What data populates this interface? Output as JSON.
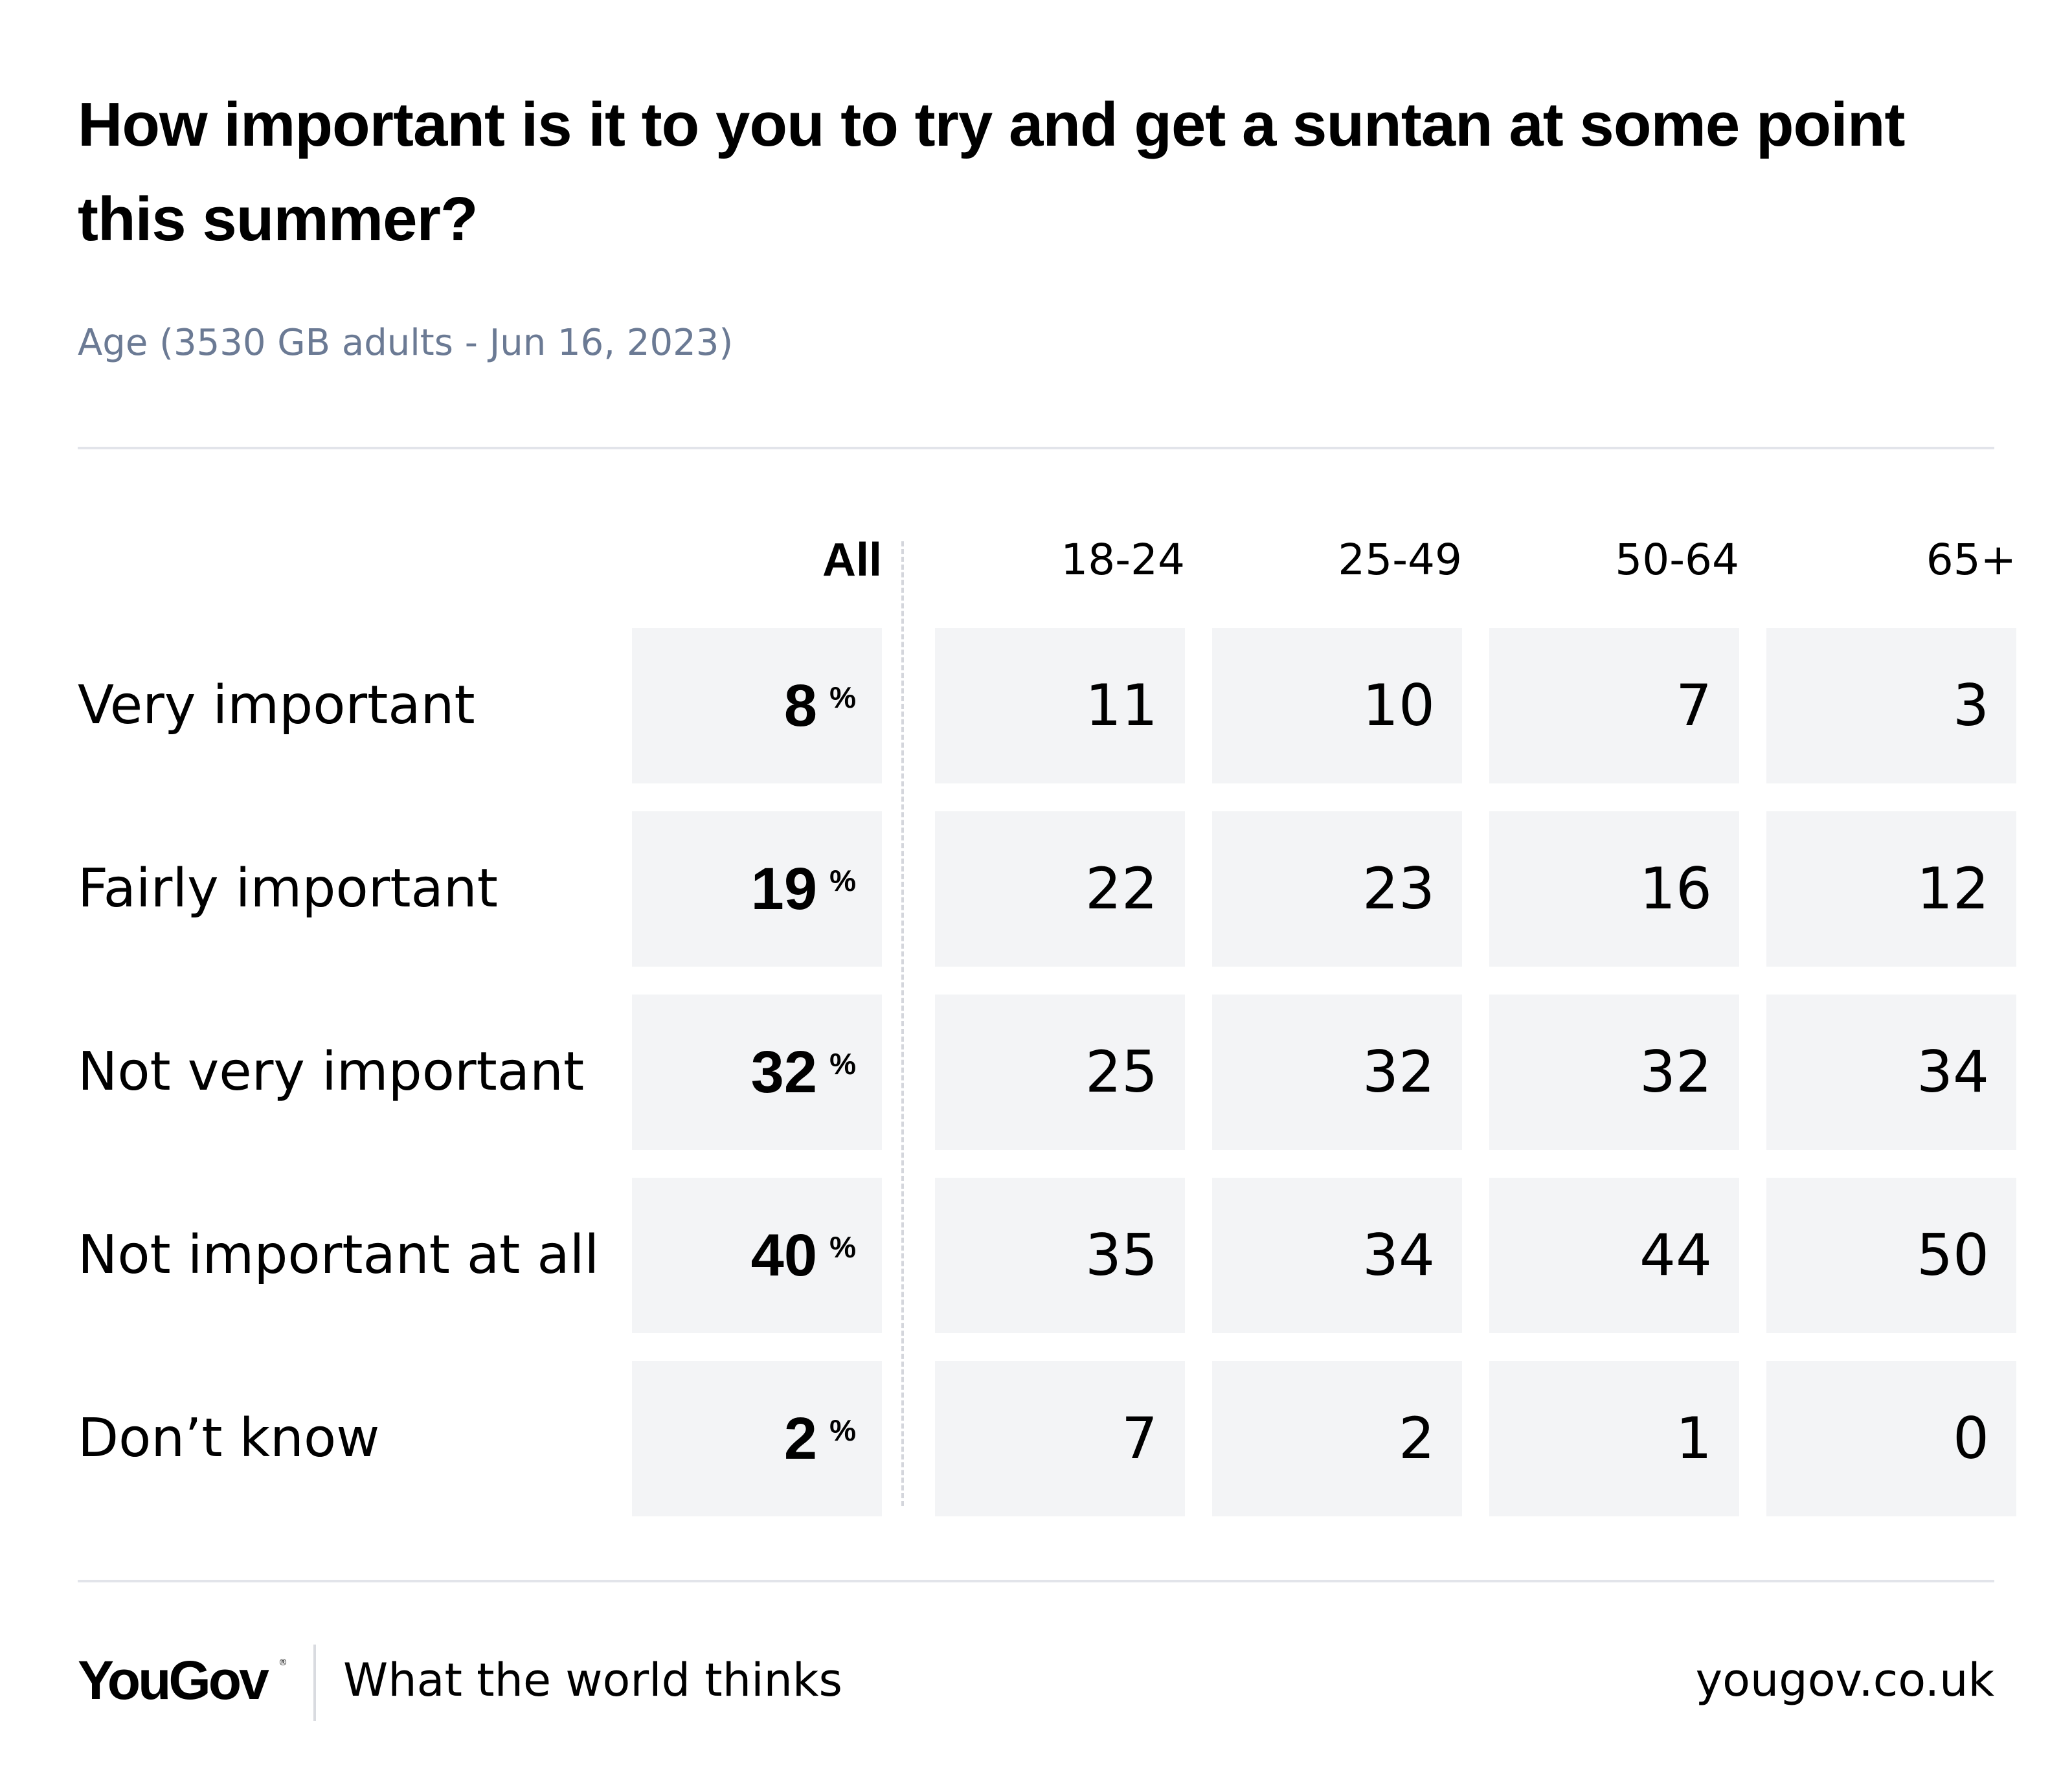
{
  "title": "How important is it to you to try and get a suntan at some point this summer?",
  "subtitle": "Age (3530 GB adults - Jun 16, 2023)",
  "chart_data": {
    "type": "table",
    "columns": [
      "All",
      "18-24",
      "25-49",
      "50-64",
      "65+"
    ],
    "rows": [
      "Very important",
      "Fairly important",
      "Not very important",
      "Not important at all",
      "Don’t know"
    ],
    "percent_symbol": "%",
    "values": [
      [
        8,
        11,
        10,
        7,
        3
      ],
      [
        19,
        22,
        23,
        16,
        12
      ],
      [
        32,
        25,
        32,
        32,
        34
      ],
      [
        40,
        35,
        34,
        44,
        50
      ],
      [
        2,
        7,
        2,
        1,
        0
      ]
    ]
  },
  "footer": {
    "brand": "YouGov",
    "brand_mark": "®",
    "tagline": "What the world thinks",
    "site": "yougov.co.uk"
  },
  "colors": {
    "cell_background": "#f3f4f6",
    "subtitle": "#6b7a94",
    "rule": "#e2e4ea"
  }
}
